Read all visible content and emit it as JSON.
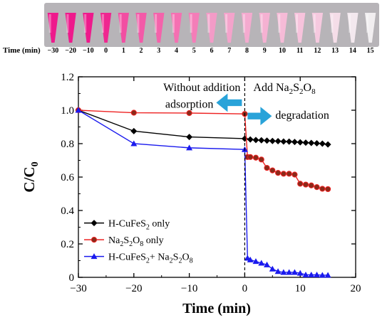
{
  "photo": {
    "time_label": "Time (min)",
    "times": [
      "−30",
      "−20",
      "−10",
      "0",
      "1",
      "2",
      "3",
      "4",
      "5",
      "6",
      "7",
      "8",
      "9",
      "10",
      "11",
      "12",
      "13",
      "14",
      "15"
    ],
    "vial_colors": [
      "#ee1a8c",
      "#ee1a8c",
      "#ee1a8c",
      "#ef2790",
      "#f24ea2",
      "#f35aa8",
      "#f463ab",
      "#f570b2",
      "#f47db8",
      "#f39bc7",
      "#f4a3cb",
      "#f4aacf",
      "#f5b1d2",
      "#f6bbd7",
      "#f7c3dc",
      "#f6c9df",
      "#f5dde8",
      "#f3e8ee",
      "#f1eef0"
    ],
    "colors": {
      "background": "#b7b4b8",
      "vial_highlight": "#ffffff"
    }
  },
  "chart_data": {
    "type": "line",
    "xlabel": "Time (min)",
    "ylabel_main": "C/C",
    "ylabel_sub": "0",
    "xlim": [
      -30,
      20
    ],
    "ylim": [
      0,
      1.2
    ],
    "xticks": [
      -30,
      -20,
      -10,
      0,
      10,
      20
    ],
    "xtick_labels": [
      "−30",
      "−20",
      "−10",
      "0",
      "10",
      "20"
    ],
    "yticks": [
      0,
      0.2,
      0.4,
      0.6,
      0.8,
      1.0,
      1.2
    ],
    "ytick_labels": [
      "0",
      "0.2",
      "0.4",
      "0.6",
      "0.8",
      "1.0",
      "1.2"
    ],
    "series": [
      {
        "name": "H-CuFeS2 only",
        "legend": [
          "H-CuFeS",
          "2",
          " only"
        ],
        "color": "#000000",
        "marker": "diamond",
        "x": [
          -30,
          -20,
          -10,
          0,
          1,
          2,
          3,
          4,
          5,
          6,
          7,
          8,
          9,
          10,
          11,
          12,
          13,
          14,
          15
        ],
        "y": [
          1.0,
          0.875,
          0.84,
          0.83,
          0.825,
          0.822,
          0.82,
          0.818,
          0.816,
          0.815,
          0.813,
          0.812,
          0.81,
          0.808,
          0.806,
          0.804,
          0.802,
          0.8,
          0.795
        ]
      },
      {
        "name": "Na2S2O8 only",
        "legend": [
          "Na",
          "2",
          "S",
          "2",
          "O",
          "8",
          " only"
        ],
        "color": "#ee2222",
        "marker": "circle",
        "x": [
          -30,
          -20,
          -10,
          0,
          0.5,
          1,
          2,
          3,
          4,
          5,
          6,
          7,
          8,
          9,
          10,
          11,
          12,
          13,
          14,
          15
        ],
        "y": [
          1.0,
          0.985,
          0.983,
          0.978,
          0.72,
          0.72,
          0.716,
          0.705,
          0.655,
          0.64,
          0.625,
          0.62,
          0.62,
          0.615,
          0.56,
          0.555,
          0.55,
          0.54,
          0.53,
          0.528
        ]
      },
      {
        "name": "H-CuFeS2+ Na2S2O8",
        "legend": [
          "H-CuFeS",
          "2",
          "+ Na",
          "2",
          "S",
          "2",
          "O",
          "8"
        ],
        "color": "#1a1aee",
        "marker": "triangle",
        "x": [
          -30,
          -20,
          -10,
          0,
          0.5,
          1,
          2,
          3,
          4,
          5,
          6,
          7,
          8,
          9,
          10,
          11,
          12,
          13,
          14,
          15
        ],
        "y": [
          1.0,
          0.8,
          0.775,
          0.765,
          0.115,
          0.105,
          0.095,
          0.085,
          0.075,
          0.05,
          0.035,
          0.03,
          0.03,
          0.03,
          0.025,
          0.015,
          0.015,
          0.015,
          0.013,
          0.013
        ]
      }
    ],
    "vline_x": 0,
    "annotations": {
      "left_line1": "Without addition",
      "left_line2": "adsorption",
      "right_add_prefix": "Add Na",
      "right_add_parts": [
        "2",
        "S",
        "2",
        "O",
        "8"
      ],
      "right_degradation": "degradation"
    },
    "arrow_color": "#29a3d9",
    "legend_position": "bottom-left",
    "grid": false
  }
}
